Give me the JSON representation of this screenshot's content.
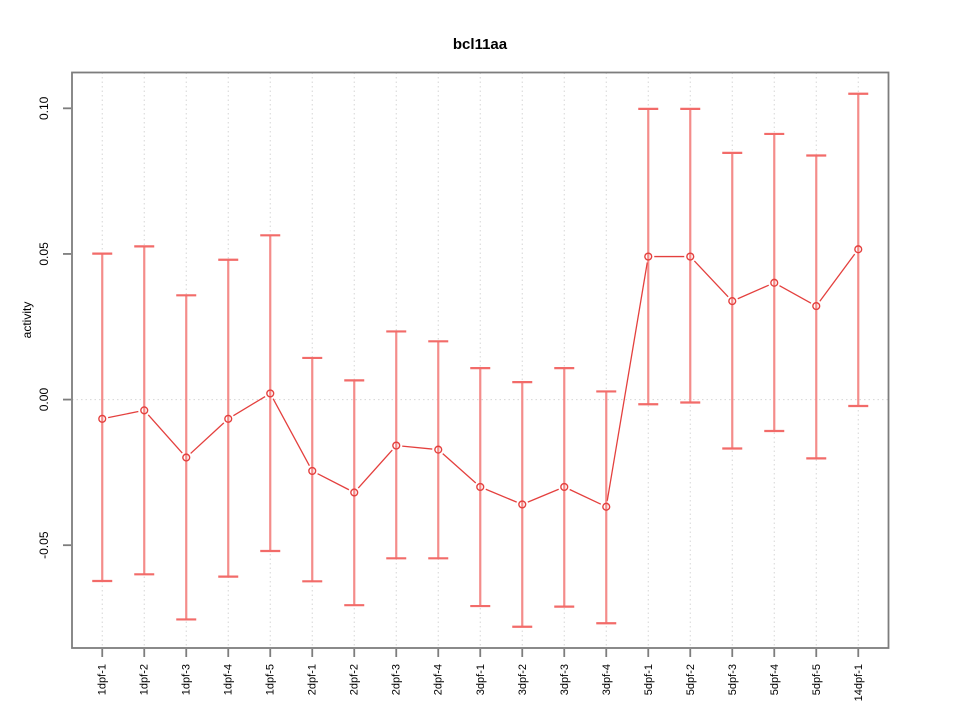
{
  "window": {
    "background": "#ffffff"
  },
  "chart_data": {
    "type": "line",
    "title": "bcl11aa",
    "xlabel": "",
    "ylabel": "activity",
    "legend": "none",
    "grid": {
      "vertical_dotted_per_category": true,
      "horizontal_dotted_at_zero": true
    },
    "categories": [
      "1dpf-1",
      "1dpf-2",
      "1dpf-3",
      "1dpf-4",
      "1dpf-5",
      "2dpf-1",
      "2dpf-2",
      "2dpf-3",
      "2dpf-4",
      "3dpf-1",
      "3dpf-2",
      "3dpf-3",
      "3dpf-4",
      "5dpf-1",
      "5dpf-2",
      "5dpf-3",
      "5dpf-4",
      "5dpf-5",
      "14dpf-1"
    ],
    "series": [
      {
        "name": "activity",
        "marker": "open-circle",
        "values": [
          -0.0066,
          -0.0037,
          -0.0199,
          -0.0066,
          0.0021,
          -0.0245,
          -0.0319,
          -0.0158,
          -0.0172,
          -0.03,
          -0.036,
          -0.03,
          -0.0368,
          0.0491,
          0.0491,
          0.0338,
          0.0401,
          0.0321,
          0.0516
        ],
        "error_upper": [
          0.0501,
          0.0526,
          0.0358,
          0.048,
          0.0564,
          0.0143,
          0.0066,
          0.0234,
          0.02,
          0.0108,
          0.006,
          0.0108,
          0.0028,
          0.0998,
          0.0998,
          0.0847,
          0.0912,
          0.0838,
          0.105
        ],
        "error_lower": [
          -0.0623,
          -0.06,
          -0.0755,
          -0.0608,
          -0.052,
          -0.0624,
          -0.0706,
          -0.0545,
          -0.0545,
          -0.0709,
          -0.078,
          -0.0711,
          -0.0768,
          -0.0016,
          -0.001,
          -0.0168,
          -0.0108,
          -0.0202,
          -0.0022
        ]
      }
    ],
    "ylim": [
      -0.0853,
      0.1123
    ],
    "yticks": [
      {
        "value": -0.05,
        "label": "-0.05"
      },
      {
        "value": 0.0,
        "label": "0.00"
      },
      {
        "value": 0.05,
        "label": "0.05"
      },
      {
        "value": 0.1,
        "label": "0.10"
      }
    ],
    "colors": {
      "line": "#e4403e",
      "marker": "#e4403e",
      "error_bar": "#f48c8a",
      "error_cap": "#f26b69",
      "axis": "#7d7d7d",
      "gridline": "#d6d6d6",
      "text": "#000000"
    }
  }
}
